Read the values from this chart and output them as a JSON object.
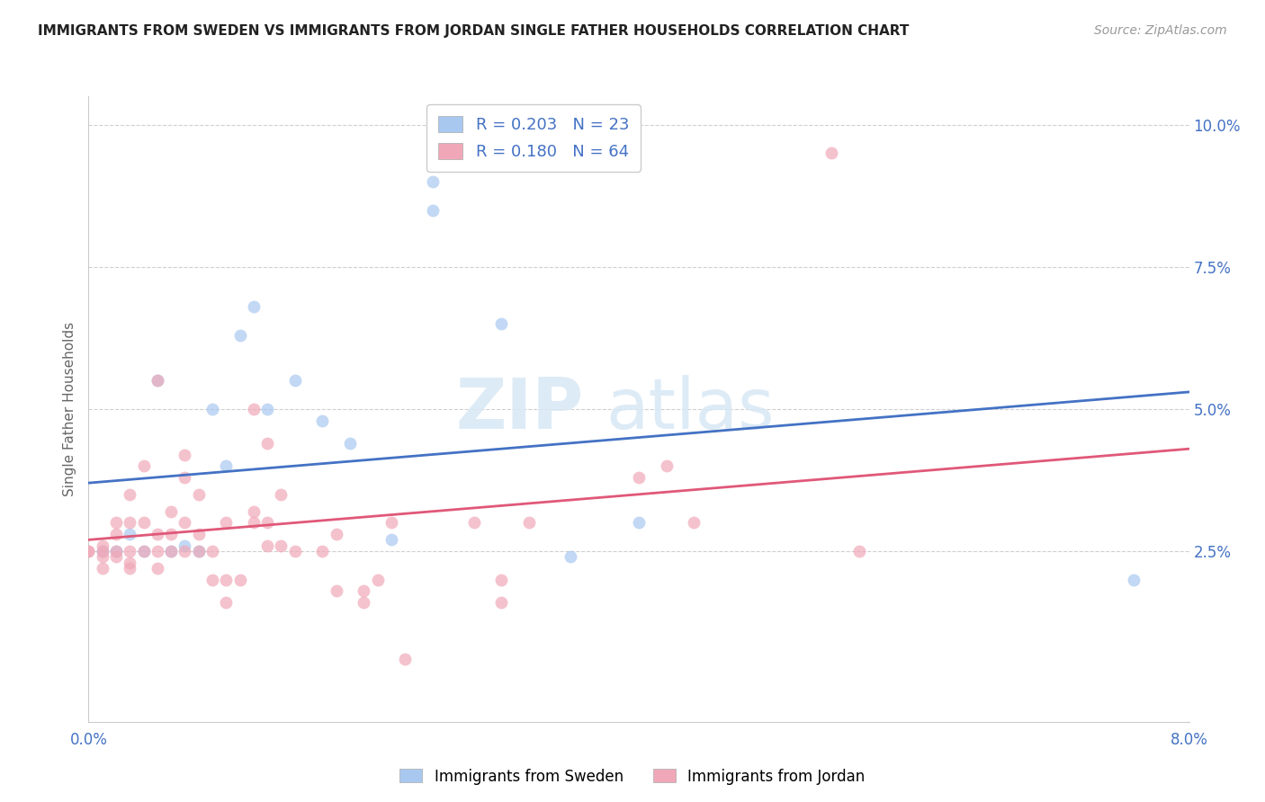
{
  "title": "IMMIGRANTS FROM SWEDEN VS IMMIGRANTS FROM JORDAN SINGLE FATHER HOUSEHOLDS CORRELATION CHART",
  "source": "Source: ZipAtlas.com",
  "ylabel_left": "Single Father Households",
  "xlim": [
    0.0,
    0.08
  ],
  "ylim": [
    -0.005,
    0.105
  ],
  "xticks": [
    0.0,
    0.02,
    0.04,
    0.06,
    0.08
  ],
  "xtick_labels": [
    "0.0%",
    "",
    "",
    "",
    "8.0%"
  ],
  "ytick_labels_right": [
    "2.5%",
    "5.0%",
    "7.5%",
    "10.0%"
  ],
  "yticks_right": [
    0.025,
    0.05,
    0.075,
    0.1
  ],
  "watermark_zip": "ZIP",
  "watermark_atlas": "atlas",
  "sweden_color": "#A8C8F0",
  "jordan_color": "#F0A8B8",
  "sweden_line_color": "#4472C4",
  "jordan_line_color": "#E05878",
  "sweden_R": 0.203,
  "sweden_N": 23,
  "jordan_R": 0.18,
  "jordan_N": 64,
  "legend_label_sweden": "Immigrants from Sweden",
  "legend_label_jordan": "Immigrants from Jordan",
  "background_color": "#ffffff",
  "grid_color": "#d0d0d0",
  "sweden_line_start_y": 0.037,
  "sweden_line_end_y": 0.053,
  "jordan_line_start_y": 0.027,
  "jordan_line_end_y": 0.043,
  "sweden_points_x": [
    0.001,
    0.002,
    0.003,
    0.004,
    0.005,
    0.006,
    0.007,
    0.008,
    0.009,
    0.01,
    0.011,
    0.012,
    0.013,
    0.015,
    0.017,
    0.019,
    0.022,
    0.025,
    0.03,
    0.035,
    0.04,
    0.076,
    0.025
  ],
  "sweden_points_y": [
    0.025,
    0.025,
    0.028,
    0.025,
    0.055,
    0.025,
    0.026,
    0.025,
    0.05,
    0.04,
    0.063,
    0.068,
    0.05,
    0.055,
    0.048,
    0.044,
    0.027,
    0.09,
    0.065,
    0.024,
    0.03,
    0.02,
    0.085
  ],
  "jordan_points_x": [
    0.0,
    0.0,
    0.001,
    0.001,
    0.001,
    0.001,
    0.002,
    0.002,
    0.002,
    0.002,
    0.003,
    0.003,
    0.003,
    0.003,
    0.003,
    0.004,
    0.004,
    0.004,
    0.005,
    0.005,
    0.005,
    0.005,
    0.006,
    0.006,
    0.006,
    0.007,
    0.007,
    0.007,
    0.007,
    0.008,
    0.008,
    0.008,
    0.009,
    0.009,
    0.01,
    0.01,
    0.01,
    0.011,
    0.012,
    0.012,
    0.012,
    0.013,
    0.013,
    0.013,
    0.014,
    0.014,
    0.015,
    0.017,
    0.018,
    0.018,
    0.02,
    0.02,
    0.021,
    0.022,
    0.023,
    0.028,
    0.03,
    0.03,
    0.032,
    0.04,
    0.042,
    0.044,
    0.054,
    0.056
  ],
  "jordan_points_y": [
    0.025,
    0.025,
    0.022,
    0.024,
    0.025,
    0.026,
    0.024,
    0.025,
    0.028,
    0.03,
    0.022,
    0.023,
    0.025,
    0.03,
    0.035,
    0.025,
    0.03,
    0.04,
    0.022,
    0.025,
    0.028,
    0.055,
    0.025,
    0.028,
    0.032,
    0.025,
    0.03,
    0.038,
    0.042,
    0.025,
    0.028,
    0.035,
    0.02,
    0.025,
    0.016,
    0.02,
    0.03,
    0.02,
    0.03,
    0.032,
    0.05,
    0.026,
    0.03,
    0.044,
    0.026,
    0.035,
    0.025,
    0.025,
    0.018,
    0.028,
    0.016,
    0.018,
    0.02,
    0.03,
    0.006,
    0.03,
    0.016,
    0.02,
    0.03,
    0.038,
    0.04,
    0.03,
    0.095,
    0.025
  ]
}
